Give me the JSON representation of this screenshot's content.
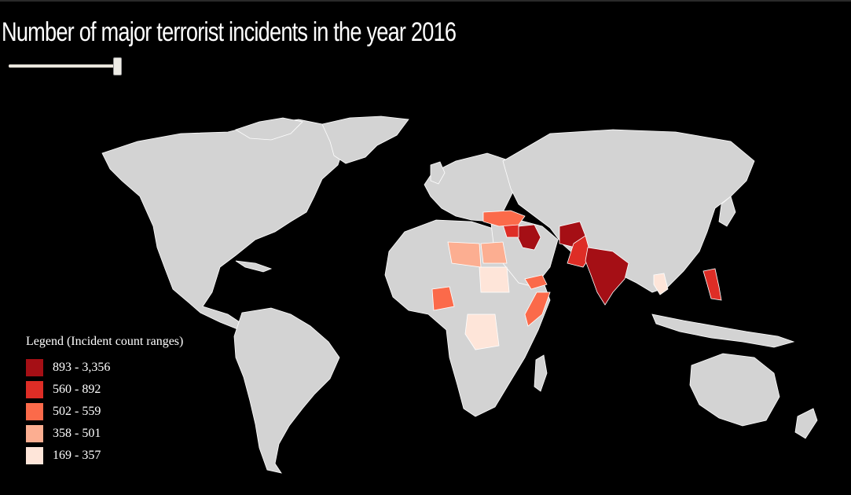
{
  "title": "Number of major terrorist incidents in the year 2016",
  "year_slider": {
    "value_fraction": 1.0
  },
  "map": {
    "land_color": "#d3d3d3",
    "background": "#000000",
    "highlighted_countries": [
      {
        "name": "Iraq",
        "range": "893 - 3,356",
        "color": "#a50f15"
      },
      {
        "name": "Afghanistan",
        "range": "893 - 3,356",
        "color": "#a50f15"
      },
      {
        "name": "India",
        "range": "893 - 3,356",
        "color": "#a50f15"
      },
      {
        "name": "Pakistan",
        "range": "560 - 892",
        "color": "#de2d26"
      },
      {
        "name": "Philippines",
        "range": "560 - 892",
        "color": "#de2d26"
      },
      {
        "name": "Syria",
        "range": "560 - 892",
        "color": "#de2d26"
      },
      {
        "name": "Turkey",
        "range": "502 - 559",
        "color": "#fb6a4a"
      },
      {
        "name": "Yemen",
        "range": "502 - 559",
        "color": "#fb6a4a"
      },
      {
        "name": "Nigeria",
        "range": "502 - 559",
        "color": "#fb6a4a"
      },
      {
        "name": "Somalia",
        "range": "502 - 559",
        "color": "#fb6a4a"
      },
      {
        "name": "Libya",
        "range": "358 - 501",
        "color": "#fcae91"
      },
      {
        "name": "Egypt",
        "range": "358 - 501",
        "color": "#fcae91"
      },
      {
        "name": "Sudan",
        "range": "169 - 357",
        "color": "#fee5d9"
      },
      {
        "name": "DR Congo",
        "range": "169 - 357",
        "color": "#fee5d9"
      },
      {
        "name": "Thailand",
        "range": "169 - 357",
        "color": "#fee5d9"
      }
    ]
  },
  "legend": {
    "title": "Legend (Incident count ranges)",
    "items": [
      {
        "label": "893 - 3,356",
        "color": "#a50f15"
      },
      {
        "label": "560 - 892",
        "color": "#de2d26"
      },
      {
        "label": "502 - 559",
        "color": "#fb6a4a"
      },
      {
        "label": "358 - 501",
        "color": "#fcae91"
      },
      {
        "label": "169 - 357",
        "color": "#fee5d9"
      }
    ]
  }
}
